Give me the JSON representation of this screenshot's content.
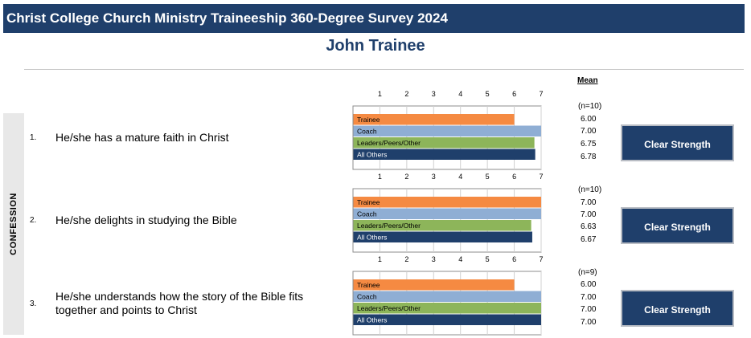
{
  "header": {
    "title": "Christ College Church Ministry Traineeship 360-Degree Survey 2024",
    "person": "John Trainee"
  },
  "mean_header": "Mean",
  "section": "CONFESSION",
  "colors": {
    "banner": "#1f3f6b",
    "trainee": "#f58a42",
    "coach": "#8faed4",
    "leaders": "#8db55a",
    "all_others": "#1f3f6b"
  },
  "items": [
    {
      "number": "1.",
      "text": "He/she has a mature faith in Christ",
      "n": "(n=10)",
      "means": [
        "6.00",
        "7.00",
        "6.75",
        "6.78"
      ],
      "button": "Clear Strength"
    },
    {
      "number": "2.",
      "text": "He/she delights in studying the Bible",
      "n": "(n=10)",
      "means": [
        "7.00",
        "7.00",
        "6.63",
        "6.67"
      ],
      "button": "Clear Strength"
    },
    {
      "number": "3.",
      "text": "He/she understands how the story of the Bible fits together and points to Christ",
      "n": "(n=9)",
      "means": [
        "6.00",
        "7.00",
        "7.00",
        "7.00"
      ],
      "button": "Clear Strength"
    }
  ],
  "chart_data": [
    {
      "type": "bar",
      "orientation": "horizontal",
      "categories": [
        "Trainee",
        "Coach",
        "Leaders/Peers/Other",
        "All Others"
      ],
      "values": [
        6.0,
        7.0,
        6.75,
        6.78
      ],
      "xlim": [
        0,
        7
      ],
      "ticks": [
        "1",
        "2",
        "3",
        "4",
        "5",
        "6",
        "7"
      ],
      "grid": true
    },
    {
      "type": "bar",
      "orientation": "horizontal",
      "categories": [
        "Trainee",
        "Coach",
        "Leaders/Peers/Other",
        "All Others"
      ],
      "values": [
        7.0,
        7.0,
        6.63,
        6.67
      ],
      "xlim": [
        0,
        7
      ],
      "ticks": [
        "1",
        "2",
        "3",
        "4",
        "5",
        "6",
        "7"
      ],
      "grid": true
    },
    {
      "type": "bar",
      "orientation": "horizontal",
      "categories": [
        "Trainee",
        "Coach",
        "Leaders/Peers/Other",
        "All Others"
      ],
      "values": [
        6.0,
        7.0,
        7.0,
        7.0
      ],
      "xlim": [
        0,
        7
      ],
      "ticks": [
        "1",
        "2",
        "3",
        "4",
        "5",
        "6",
        "7"
      ],
      "grid": true
    }
  ]
}
